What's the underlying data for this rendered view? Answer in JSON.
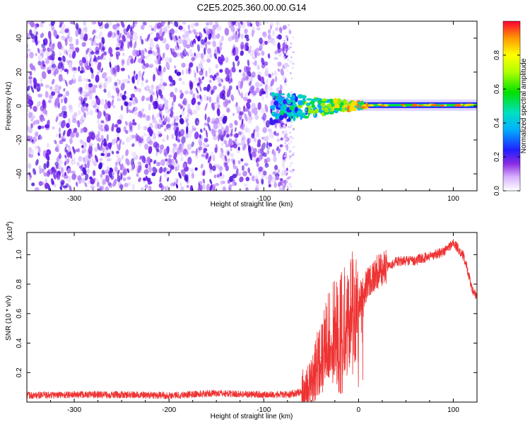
{
  "title": "C2E5.2025.360.00.00.G14",
  "chart_data": [
    {
      "type": "heatmap",
      "xlabel": "Height of straight line (km)",
      "ylabel": "Frequency (Hz)",
      "xlim": [
        -350,
        125
      ],
      "ylim": [
        -50,
        50
      ],
      "xticks": [
        -300,
        -200,
        -100,
        0,
        100
      ],
      "xtick_labels": [
        "-300",
        "-200",
        "-100",
        "0",
        "100"
      ],
      "yticks": [
        40,
        20,
        0,
        -20,
        -40
      ],
      "ytick_labels": [
        "40",
        "20",
        "0",
        "-20",
        "-40"
      ],
      "noise_region_x": [
        -350,
        -75
      ],
      "signal_start_x": -93,
      "signal_line_freq": 0.5,
      "colorbar": {
        "label": "Normalized spectral amplitude",
        "range": [
          0.0,
          1.0
        ],
        "ticks": [
          0.0,
          0.2,
          0.4,
          0.6,
          0.8
        ],
        "tick_labels": [
          "0.0",
          "0.2",
          "0.4",
          "0.6",
          "0.8"
        ]
      }
    },
    {
      "type": "line",
      "xlabel": "Height of straight line (km)",
      "ylabel": "SNR (10 * v/v)",
      "exponent_label": "(x10",
      "exponent_power": "4",
      "exponent_close": ")",
      "xlim": [
        -350,
        125
      ],
      "ylim": [
        0,
        1.15
      ],
      "xticks": [
        -300,
        -200,
        -100,
        0,
        100
      ],
      "xtick_labels": [
        "-300",
        "-200",
        "-100",
        "0",
        "100"
      ],
      "yticks": [
        0.2,
        0.4,
        0.6,
        0.8,
        1.0
      ],
      "ytick_labels": [
        "0.2",
        "0.4",
        "0.6",
        "0.8",
        "1.0"
      ],
      "series": [
        {
          "name": "SNR",
          "color": "#ee3333",
          "x": [
            -350,
            -300,
            -250,
            -200,
            -150,
            -100,
            -75,
            -60,
            -50,
            -40,
            -35,
            -30,
            -25,
            -20,
            -15,
            -10,
            -5,
            0,
            10,
            20,
            30,
            40,
            50,
            60,
            70,
            80,
            90,
            100,
            110,
            115,
            120,
            125
          ],
          "y": [
            0.045,
            0.05,
            0.05,
            0.045,
            0.06,
            0.05,
            0.05,
            0.07,
            0.12,
            0.3,
            0.4,
            0.47,
            0.5,
            0.55,
            0.58,
            0.62,
            0.65,
            0.68,
            0.82,
            0.88,
            0.92,
            0.95,
            0.96,
            0.96,
            0.98,
            1.0,
            1.02,
            1.08,
            1.0,
            0.9,
            0.75,
            0.72
          ]
        }
      ]
    }
  ],
  "colors": {
    "series": "#ee3333",
    "noise": "#6a1cf0"
  }
}
